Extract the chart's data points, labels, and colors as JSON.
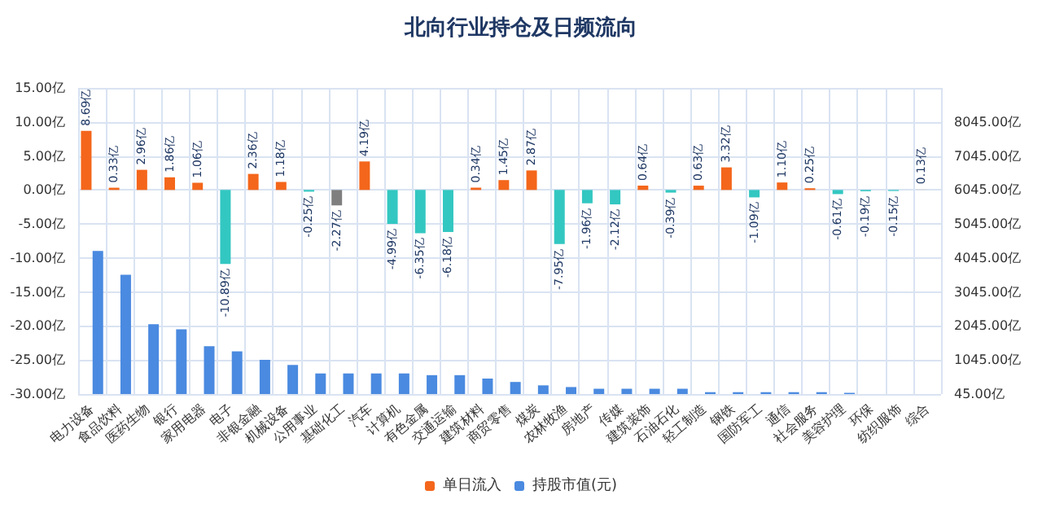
{
  "chart_data": {
    "type": "bar",
    "title": "北向行业持仓及日频流向",
    "categories": [
      "电力设备",
      "食品饮料",
      "医药生物",
      "银行",
      "家用电器",
      "电子",
      "非银金融",
      "机械设备",
      "公用事业",
      "基础化工",
      "汽车",
      "计算机",
      "有色金属",
      "交通运输",
      "建筑材料",
      "商贸零售",
      "煤炭",
      "农林牧渔",
      "房地产",
      "传媒",
      "建筑装饰",
      "石油石化",
      "轻工制造",
      "钢铁",
      "国防军工",
      "通信",
      "社会服务",
      "美容护理",
      "环保",
      "纺织服饰",
      "综合"
    ],
    "series": [
      {
        "name": "单日流入",
        "color": "#f4661b",
        "values": [
          8.69,
          0.33,
          2.96,
          1.86,
          1.06,
          -10.89,
          2.36,
          1.18,
          -0.25,
          -2.27,
          4.19,
          -4.99,
          -6.35,
          -6.18,
          0.34,
          1.45,
          2.87,
          -7.95,
          -1.96,
          -2.12,
          0.64,
          -0.39,
          0.63,
          3.32,
          -1.09,
          1.1,
          0.25,
          -0.61,
          -0.19,
          -0.15,
          0.13
        ],
        "colors": [
          "#f4661b",
          "#f4661b",
          "#f4661b",
          "#f4661b",
          "#f4661b",
          "#33c7c1",
          "#f4661b",
          "#f4661b",
          "#33c7c1",
          "#7f7f7f",
          "#f4661b",
          "#33c7c1",
          "#33c7c1",
          "#33c7c1",
          "#f4661b",
          "#f4661b",
          "#f4661b",
          "#33c7c1",
          "#33c7c1",
          "#33c7c1",
          "#f4661b",
          "#33c7c1",
          "#f4661b",
          "#f4661b",
          "#33c7c1",
          "#f4661b",
          "#f4661b",
          "#33c7c1",
          "#33c7c1",
          "#33c7c1",
          "#dcdcdc"
        ],
        "value_labels": [
          "8.69亿",
          "0.33亿",
          "2.96亿",
          "1.86亿",
          "1.06亿",
          "-10.89亿",
          "2.36亿",
          "1.18亿",
          "-0.25亿",
          "-2.27亿",
          "4.19亿",
          "-4.99亿",
          "-6.35亿",
          "-6.18亿",
          "0.34亿",
          "1.45亿",
          "2.87亿",
          "-7.95亿",
          "-1.96亿",
          "-2.12亿",
          "0.64亿",
          "-0.39亿",
          "0.63亿",
          "3.32亿",
          "-1.09亿",
          "1.10亿",
          "0.25亿",
          "-0.61亿",
          "-0.19亿",
          "-0.15亿",
          "0.13亿"
        ]
      },
      {
        "name": "持股市值(元)",
        "color": "#4a8ae0",
        "axis": "y2",
        "values": [
          4250,
          3550,
          2100,
          1950,
          1450,
          1300,
          1050,
          900,
          650,
          650,
          650,
          650,
          600,
          600,
          500,
          400,
          300,
          250,
          200,
          200,
          200,
          200,
          100,
          100,
          100,
          100,
          100,
          80,
          null,
          null,
          null
        ]
      }
    ],
    "ylim": [
      -30,
      15
    ],
    "yticks": [
      {
        "value": -30,
        "label": "-30.00亿"
      },
      {
        "value": -25,
        "label": "-25.00亿"
      },
      {
        "value": -20,
        "label": "-20.00亿"
      },
      {
        "value": -15,
        "label": "-15.00亿"
      },
      {
        "value": -10,
        "label": "-10.00亿"
      },
      {
        "value": -5,
        "label": "-5.00亿"
      },
      {
        "value": 0,
        "label": "0.00亿"
      },
      {
        "value": 5,
        "label": "5.00亿"
      },
      {
        "value": 10,
        "label": "10.00亿"
      },
      {
        "value": 15,
        "label": "15.00亿"
      }
    ],
    "y2lim": [
      45,
      9045
    ],
    "y2ticks": [
      {
        "value": 45,
        "label": "45.00亿"
      },
      {
        "value": 1045,
        "label": "1045.00亿"
      },
      {
        "value": 2045,
        "label": "2045.00亿"
      },
      {
        "value": 3045,
        "label": "3045.00亿"
      },
      {
        "value": 4045,
        "label": "4045.00亿"
      },
      {
        "value": 5045,
        "label": "5045.00亿"
      },
      {
        "value": 6045,
        "label": "6045.00亿"
      },
      {
        "value": 7045,
        "label": "7045.00亿"
      },
      {
        "value": 8045,
        "label": "8045.00亿"
      }
    ],
    "grid": true,
    "legend": "bottom"
  }
}
